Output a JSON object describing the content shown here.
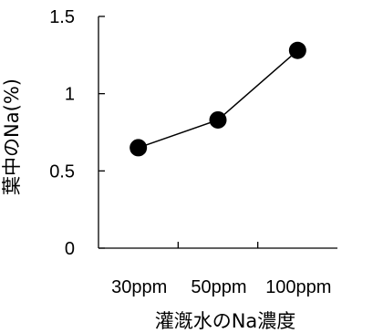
{
  "chart_data": {
    "type": "line",
    "title": "",
    "xlabel": "灌漑水のNa濃度",
    "ylabel": "葉中のNa(%)",
    "categories": [
      "30ppm",
      "50ppm",
      "100ppm"
    ],
    "series": [
      {
        "values": [
          0.65,
          0.83,
          1.28
        ]
      }
    ],
    "ylim": [
      0,
      1.5
    ],
    "yticks": [
      0,
      0.5,
      1,
      1.5
    ],
    "ytick_labels": [
      "0",
      "0.5",
      "1",
      "1.5"
    ],
    "grid": false,
    "legend": "none"
  }
}
